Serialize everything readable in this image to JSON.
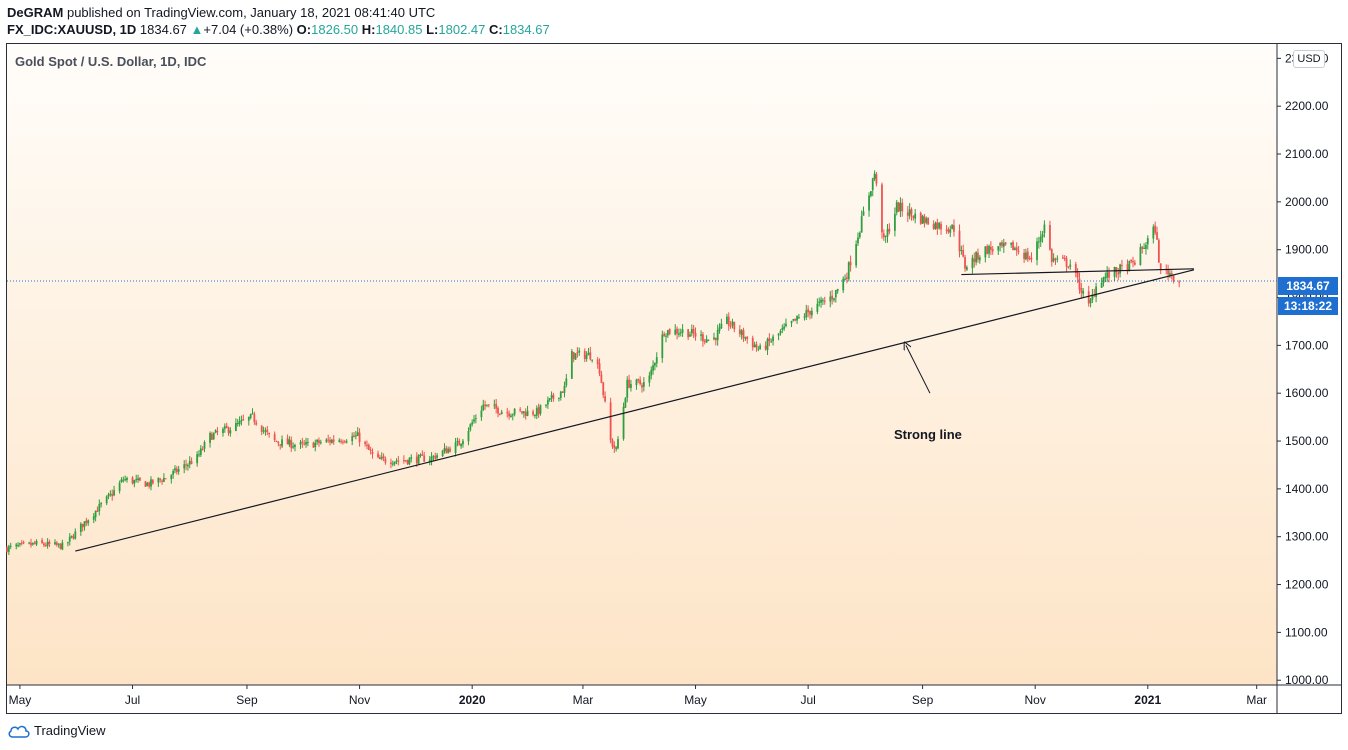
{
  "header": {
    "author": "DeGRAM",
    "published": "published on TradingView.com, January 18, 2021 08:41:40 UTC",
    "symbol": "FX_IDC:XAUUSD, 1D",
    "last": "1834.67",
    "change": "+7.04 (+0.38%)",
    "o_label": "O:",
    "o_value": "1826.50",
    "h_label": "H:",
    "h_value": "1840.85",
    "l_label": "L:",
    "l_value": "1802.47",
    "c_label": "C:",
    "c_value": "1834.67"
  },
  "chart_title": "Gold Spot / U.S. Dollar, 1D, IDC",
  "currency_badge": "USD",
  "price_tag": "1834.67",
  "time_tag": "13:18:22",
  "annotation": "Strong line",
  "brand": "TradingView",
  "colors": {
    "up": "#26a69a",
    "up_candle": "#2e9e3f",
    "down_candle": "#ef5350",
    "accent": "#1e6fd0"
  },
  "chart_data": {
    "type": "candlestick",
    "title": "Gold Spot / U.S. Dollar, 1D, IDC",
    "y_ticks": [
      1000,
      1100,
      1200,
      1300,
      1400,
      1500,
      1600,
      1700,
      1800,
      1900,
      2000,
      2100,
      2200,
      2300
    ],
    "y_tick_labels": [
      "1000.00",
      "1100.00",
      "1200.00",
      "1300.00",
      "1400.00",
      "1500.00",
      "1600.00",
      "1700.00",
      "1800.00",
      "1900.00",
      "2000.00",
      "2100.00",
      "2200.00",
      "2300.00"
    ],
    "ylim": [
      990,
      2330
    ],
    "x_ticks": [
      {
        "label": "May",
        "date": "2019-05-01"
      },
      {
        "label": "Jul",
        "date": "2019-07-01"
      },
      {
        "label": "Sep",
        "date": "2019-09-01"
      },
      {
        "label": "Nov",
        "date": "2019-11-01"
      },
      {
        "label": "2020",
        "date": "2020-01-01"
      },
      {
        "label": "Mar",
        "date": "2020-03-01"
      },
      {
        "label": "May",
        "date": "2020-05-01"
      },
      {
        "label": "Jul",
        "date": "2020-07-01"
      },
      {
        "label": "Sep",
        "date": "2020-09-01"
      },
      {
        "label": "Nov",
        "date": "2020-11-01"
      },
      {
        "label": "2021",
        "date": "2021-01-01"
      },
      {
        "label": "Mar",
        "date": "2021-03-01"
      }
    ],
    "x_range": [
      "2019-04-24",
      "2021-03-12"
    ],
    "last_price": 1834.67,
    "price_path": [
      [
        "2019-04-24",
        1276
      ],
      [
        "2019-05-10",
        1285
      ],
      [
        "2019-05-25",
        1280
      ],
      [
        "2019-06-05",
        1330
      ],
      [
        "2019-06-20",
        1390
      ],
      [
        "2019-06-26",
        1420
      ],
      [
        "2019-07-10",
        1410
      ],
      [
        "2019-07-20",
        1425
      ],
      [
        "2019-08-05",
        1465
      ],
      [
        "2019-08-12",
        1510
      ],
      [
        "2019-08-25",
        1530
      ],
      [
        "2019-09-04",
        1550
      ],
      [
        "2019-09-15",
        1500
      ],
      [
        "2019-10-01",
        1490
      ],
      [
        "2019-10-15",
        1500
      ],
      [
        "2019-10-31",
        1510
      ],
      [
        "2019-11-10",
        1460
      ],
      [
        "2019-11-25",
        1460
      ],
      [
        "2019-12-10",
        1465
      ],
      [
        "2019-12-25",
        1495
      ],
      [
        "2020-01-07",
        1575
      ],
      [
        "2020-01-20",
        1560
      ],
      [
        "2020-02-05",
        1560
      ],
      [
        "2020-02-20",
        1610
      ],
      [
        "2020-02-24",
        1680
      ],
      [
        "2020-03-06",
        1680
      ],
      [
        "2020-03-10",
        1650
      ],
      [
        "2020-03-16",
        1500
      ],
      [
        "2020-03-19",
        1480
      ],
      [
        "2020-03-25",
        1620
      ],
      [
        "2020-04-05",
        1620
      ],
      [
        "2020-04-14",
        1730
      ],
      [
        "2020-04-25",
        1730
      ],
      [
        "2020-05-10",
        1710
      ],
      [
        "2020-05-18",
        1750
      ],
      [
        "2020-06-05",
        1690
      ],
      [
        "2020-06-20",
        1740
      ],
      [
        "2020-07-05",
        1780
      ],
      [
        "2020-07-15",
        1805
      ],
      [
        "2020-07-22",
        1850
      ],
      [
        "2020-07-30",
        1960
      ],
      [
        "2020-08-06",
        2060
      ],
      [
        "2020-08-11",
        1915
      ],
      [
        "2020-08-18",
        1990
      ],
      [
        "2020-08-31",
        1965
      ],
      [
        "2020-09-10",
        1950
      ],
      [
        "2020-09-18",
        1945
      ],
      [
        "2020-09-24",
        1865
      ],
      [
        "2020-10-05",
        1900
      ],
      [
        "2020-10-20",
        1905
      ],
      [
        "2020-10-30",
        1880
      ],
      [
        "2020-11-06",
        1950
      ],
      [
        "2020-11-10",
        1880
      ],
      [
        "2020-11-20",
        1870
      ],
      [
        "2020-11-30",
        1780
      ],
      [
        "2020-12-05",
        1835
      ],
      [
        "2020-12-15",
        1855
      ],
      [
        "2020-12-24",
        1870
      ],
      [
        "2021-01-05",
        1945
      ],
      [
        "2021-01-08",
        1850
      ],
      [
        "2021-01-12",
        1855
      ],
      [
        "2021-01-18",
        1834
      ]
    ],
    "drawings": [
      {
        "type": "trendline",
        "label": "support",
        "from": {
          "date": "2019-05-31",
          "price": 1270
        },
        "to": {
          "date": "2021-01-26",
          "price": 1858
        }
      },
      {
        "type": "trendline",
        "label": "horizontal",
        "from": {
          "date": "2020-09-22",
          "price": 1848
        },
        "to": {
          "date": "2021-01-26",
          "price": 1860
        }
      },
      {
        "type": "arrow",
        "from": {
          "date": "2020-09-05",
          "price": 1600
        },
        "to": {
          "date": "2020-08-23",
          "price": 1700
        }
      }
    ]
  }
}
